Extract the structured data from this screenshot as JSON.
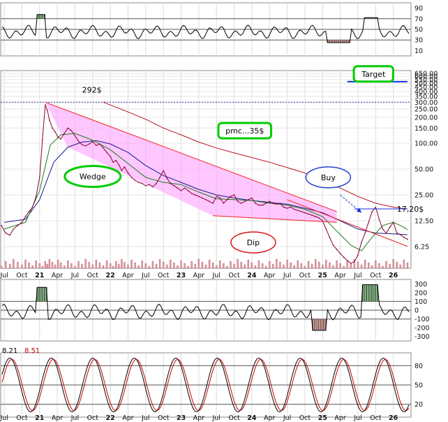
{
  "chart_data": {
    "type": "line",
    "panels": {
      "rsi": {
        "y_ticks": [
          "90",
          "70",
          "50",
          "30",
          "10"
        ],
        "levels": [
          70,
          50,
          30
        ],
        "ylim": [
          0,
          100
        ]
      },
      "price": {
        "scale": "log",
        "y_ticks_top": [
          "650.00",
          "600.00",
          "550.00",
          "500.00",
          "450.00",
          "400.00",
          "350.00",
          "300.00",
          "250.00",
          "200.00",
          "150.00",
          "100.00"
        ],
        "y_ticks_bottom": [
          "50.00",
          "25.00",
          "12.50",
          "6.25"
        ],
        "ylim": [
          3.5,
          700
        ],
        "x_ticks": [
          {
            "label": "Jul",
            "month": 2020.5
          },
          {
            "label": "Oct",
            "month": 2020.75
          },
          {
            "label": "21",
            "month": 2021.0,
            "major": true
          },
          {
            "label": "Apr",
            "month": 2021.25
          },
          {
            "label": "Jul",
            "month": 2021.5
          },
          {
            "label": "Oct",
            "month": 2021.75
          },
          {
            "label": "22",
            "month": 2022.0,
            "major": true
          },
          {
            "label": "Apr",
            "month": 2022.25
          },
          {
            "label": "Jul",
            "month": 2022.5
          },
          {
            "label": "Oct",
            "month": 2022.75
          },
          {
            "label": "23",
            "month": 2023.0,
            "major": true
          },
          {
            "label": "Apr",
            "month": 2023.25
          },
          {
            "label": "Jul",
            "month": 2023.5
          },
          {
            "label": "Oct",
            "month": 2023.75
          },
          {
            "label": "24",
            "month": 2024.0,
            "major": true
          },
          {
            "label": "Apr",
            "month": 2024.25
          },
          {
            "label": "Jul",
            "month": 2024.5
          },
          {
            "label": "Oct",
            "month": 2024.75
          },
          {
            "label": "25",
            "month": 2025.0,
            "major": true
          },
          {
            "label": "Apr",
            "month": 2025.25
          },
          {
            "label": "Jul",
            "month": 2025.5
          },
          {
            "label": "Oct",
            "month": 2025.75
          },
          {
            "label": "26",
            "month": 2026.0,
            "major": true
          }
        ],
        "xlim": [
          2020.45,
          2026.25
        ],
        "close_series": [
          [
            2020.46,
            11
          ],
          [
            2020.52,
            9
          ],
          [
            2020.58,
            8.5
          ],
          [
            2020.63,
            10
          ],
          [
            2020.69,
            11
          ],
          [
            2020.75,
            12
          ],
          [
            2020.8,
            14
          ],
          [
            2020.85,
            16
          ],
          [
            2020.9,
            18
          ],
          [
            2020.95,
            24
          ],
          [
            2021.0,
            40
          ],
          [
            2021.04,
            110
          ],
          [
            2021.08,
            280
          ],
          [
            2021.11,
            240
          ],
          [
            2021.14,
            185
          ],
          [
            2021.18,
            150
          ],
          [
            2021.22,
            135
          ],
          [
            2021.26,
            118
          ],
          [
            2021.3,
            112
          ],
          [
            2021.35,
            130
          ],
          [
            2021.4,
            150
          ],
          [
            2021.45,
            140
          ],
          [
            2021.5,
            122
          ],
          [
            2021.55,
            105
          ],
          [
            2021.6,
            96
          ],
          [
            2021.65,
            93
          ],
          [
            2021.7,
            98
          ],
          [
            2021.75,
            104
          ],
          [
            2021.8,
            94
          ],
          [
            2021.85,
            98
          ],
          [
            2021.9,
            88
          ],
          [
            2021.95,
            78
          ],
          [
            2022.0,
            70
          ],
          [
            2022.04,
            60
          ],
          [
            2022.08,
            63
          ],
          [
            2022.12,
            56
          ],
          [
            2022.16,
            48
          ],
          [
            2022.2,
            53
          ],
          [
            2022.25,
            45
          ],
          [
            2022.3,
            40
          ],
          [
            2022.35,
            37
          ],
          [
            2022.4,
            35
          ],
          [
            2022.45,
            34
          ],
          [
            2022.5,
            32
          ],
          [
            2022.55,
            33
          ],
          [
            2022.6,
            31
          ],
          [
            2022.65,
            34
          ],
          [
            2022.7,
            40
          ],
          [
            2022.75,
            48
          ],
          [
            2022.8,
            39
          ],
          [
            2022.85,
            34
          ],
          [
            2022.9,
            32
          ],
          [
            2022.95,
            30
          ],
          [
            2023.0,
            28
          ],
          [
            2023.05,
            30
          ],
          [
            2023.1,
            28
          ],
          [
            2023.15,
            26
          ],
          [
            2023.2,
            25
          ],
          [
            2023.25,
            24
          ],
          [
            2023.3,
            23
          ],
          [
            2023.35,
            22
          ],
          [
            2023.4,
            21
          ],
          [
            2023.45,
            20
          ],
          [
            2023.5,
            24
          ],
          [
            2023.55,
            23
          ],
          [
            2023.6,
            20
          ],
          [
            2023.65,
            22
          ],
          [
            2023.7,
            24
          ],
          [
            2023.75,
            25
          ],
          [
            2023.8,
            21
          ],
          [
            2023.85,
            20
          ],
          [
            2023.9,
            21
          ],
          [
            2023.95,
            22
          ],
          [
            2024.0,
            23
          ],
          [
            2024.05,
            20
          ],
          [
            2024.1,
            19
          ],
          [
            2024.15,
            19
          ],
          [
            2024.2,
            20
          ],
          [
            2024.25,
            21
          ],
          [
            2024.3,
            20
          ],
          [
            2024.35,
            19.5
          ],
          [
            2024.4,
            20
          ],
          [
            2024.45,
            18
          ],
          [
            2024.5,
            17.5
          ],
          [
            2024.55,
            18
          ],
          [
            2024.6,
            17
          ],
          [
            2024.65,
            16.5
          ],
          [
            2024.7,
            16
          ],
          [
            2024.75,
            15.5
          ],
          [
            2024.8,
            15
          ],
          [
            2024.85,
            14.5
          ],
          [
            2024.9,
            14
          ],
          [
            2024.95,
            13.5
          ],
          [
            2025.0,
            12.5
          ],
          [
            2025.05,
            10
          ],
          [
            2025.1,
            8
          ],
          [
            2025.15,
            6.5
          ],
          [
            2025.2,
            5.8
          ],
          [
            2025.25,
            5.2
          ],
          [
            2025.3,
            4.7
          ],
          [
            2025.35,
            4.3
          ],
          [
            2025.4,
            4.0
          ],
          [
            2025.45,
            4.2
          ],
          [
            2025.5,
            5
          ],
          [
            2025.55,
            7
          ],
          [
            2025.6,
            9
          ],
          [
            2025.65,
            12
          ],
          [
            2025.7,
            16
          ],
          [
            2025.75,
            18
          ],
          [
            2025.8,
            13
          ],
          [
            2025.85,
            10
          ],
          [
            2025.9,
            9
          ],
          [
            2025.95,
            10.5
          ],
          [
            2026.0,
            12
          ],
          [
            2026.05,
            9
          ],
          [
            2026.1,
            8.6
          ],
          [
            2026.15,
            8.0
          ],
          [
            2026.2,
            7.6
          ]
        ],
        "ma_short": [
          [
            2020.5,
            10
          ],
          [
            2020.8,
            12
          ],
          [
            2021.0,
            28
          ],
          [
            2021.15,
            95
          ],
          [
            2021.3,
            125
          ],
          [
            2021.5,
            130
          ],
          [
            2021.75,
            108
          ],
          [
            2022.0,
            84
          ],
          [
            2022.25,
            58
          ],
          [
            2022.5,
            40
          ],
          [
            2022.75,
            35
          ],
          [
            2023.0,
            33
          ],
          [
            2023.25,
            27
          ],
          [
            2023.5,
            22.5
          ],
          [
            2023.75,
            22
          ],
          [
            2024.0,
            21.5
          ],
          [
            2024.25,
            20
          ],
          [
            2024.5,
            19
          ],
          [
            2024.75,
            17
          ],
          [
            2025.0,
            14
          ],
          [
            2025.2,
            9.5
          ],
          [
            2025.4,
            6.5
          ],
          [
            2025.55,
            5.6
          ],
          [
            2025.7,
            8
          ],
          [
            2025.85,
            11
          ],
          [
            2026.0,
            12
          ],
          [
            2026.15,
            10.5
          ],
          [
            2026.2,
            9.8
          ]
        ],
        "ma_mid": [
          [
            2020.5,
            12
          ],
          [
            2020.8,
            13
          ],
          [
            2021.0,
            22
          ],
          [
            2021.2,
            60
          ],
          [
            2021.4,
            90
          ],
          [
            2021.6,
            103
          ],
          [
            2021.8,
            107
          ],
          [
            2022.0,
            98
          ],
          [
            2022.25,
            78
          ],
          [
            2022.5,
            55
          ],
          [
            2022.75,
            42
          ],
          [
            2023.0,
            35
          ],
          [
            2023.25,
            29
          ],
          [
            2023.5,
            25
          ],
          [
            2023.75,
            23
          ],
          [
            2024.0,
            21.5
          ],
          [
            2024.25,
            20.5
          ],
          [
            2024.5,
            19.5
          ],
          [
            2024.75,
            17.5
          ],
          [
            2025.0,
            15.5
          ],
          [
            2025.25,
            12.5
          ],
          [
            2025.5,
            10
          ],
          [
            2025.75,
            9
          ],
          [
            2026.0,
            8.8
          ],
          [
            2026.2,
            8.6
          ]
        ],
        "ma_long": [
          [
            2021.9,
            300
          ],
          [
            2022.2,
            240
          ],
          [
            2022.5,
            190
          ],
          [
            2022.75,
            150
          ],
          [
            2023.0,
            125
          ],
          [
            2023.25,
            103
          ],
          [
            2023.5,
            88
          ],
          [
            2023.75,
            77
          ],
          [
            2024.0,
            68
          ],
          [
            2024.25,
            60
          ],
          [
            2024.5,
            52
          ],
          [
            2024.75,
            45
          ],
          [
            2025.0,
            36
          ],
          [
            2025.25,
            30
          ],
          [
            2025.5,
            24
          ],
          [
            2025.75,
            20
          ],
          [
            2026.0,
            18
          ],
          [
            2026.2,
            17.2
          ]
        ],
        "wedge_upper": [
          [
            2021.08,
            300
          ],
          [
            2025.2,
            16
          ]
        ],
        "wedge_lower": [
          [
            2023.45,
            14.3
          ],
          [
            2025.2,
            12
          ]
        ],
        "breakout_line": [
          [
            2024.5,
            22
          ],
          [
            2026.2,
            6.3
          ]
        ],
        "resistance_line": [
          [
            2025.45,
            17.2
          ],
          [
            2026.2,
            17.2
          ]
        ],
        "target_line": [
          [
            2025.35,
            520
          ],
          [
            2026.2,
            520
          ]
        ],
        "dotted_line": 300,
        "annotations": [
          {
            "text": "292$",
            "x": 2021.6,
            "y": 420,
            "boxed": false
          },
          {
            "text": "Target",
            "x": 2025.72,
            "y": 640,
            "box": "rect",
            "color": "#00cc00"
          },
          {
            "text": "pmc...35$",
            "x": 2023.9,
            "y": 140,
            "box": "rect",
            "color": "#00cc00"
          },
          {
            "text": "Wedge",
            "x": 2021.75,
            "y": 41,
            "box": "ellipse",
            "color": "#00cc00"
          },
          {
            "text": "Buy",
            "x": 2025.08,
            "y": 40,
            "box": "ellipse",
            "color": "#2244cc"
          },
          {
            "text": "Dip",
            "x": 2024.02,
            "y": 7.0,
            "box": "ellipse",
            "color": "#dd1111"
          },
          {
            "text": "17,20$",
            "x": 2026.05,
            "y": 17.2,
            "boxed": false
          }
        ]
      },
      "cci": {
        "y_ticks": [
          "300",
          "200",
          "100",
          "0",
          "-100",
          "-200",
          "-300"
        ],
        "levels": [
          100,
          0,
          -100
        ],
        "ylim": [
          -350,
          350
        ]
      },
      "stoch": {
        "y_ticks": [
          "80",
          "50",
          "20"
        ],
        "levels": [
          80,
          50,
          20
        ],
        "ylim": [
          0,
          100
        ],
        "label_k": "8.21",
        "label_d": "8.51",
        "color_k": "#000000",
        "color_d": "#cc0000"
      }
    }
  }
}
